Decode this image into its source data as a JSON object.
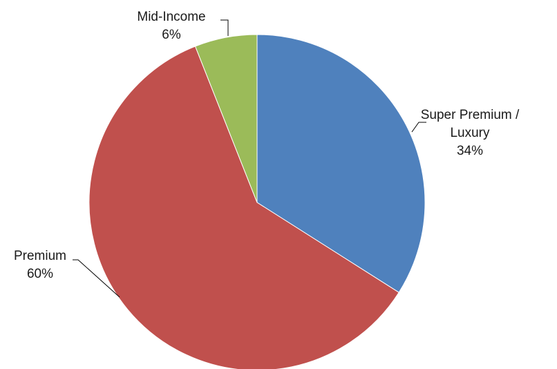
{
  "chart_data": {
    "type": "pie",
    "title": "",
    "slices": [
      {
        "category": "Super Premium / Luxury",
        "label_lines": [
          "Super Premium /",
          "Luxury"
        ],
        "percent_label": "34%",
        "value": 34,
        "color": "#4f81bd"
      },
      {
        "category": "Premium",
        "label_lines": [
          "Premium"
        ],
        "percent_label": "60%",
        "value": 60,
        "color": "#c0504d"
      },
      {
        "category": "Mid-Income",
        "label_lines": [
          "Mid-Income"
        ],
        "percent_label": "6%",
        "value": 6,
        "color": "#9bbb59"
      }
    ],
    "start_angle": "12 o'clock",
    "direction": "clockwise",
    "legend": "none",
    "data_labels": "outside with leader lines"
  }
}
